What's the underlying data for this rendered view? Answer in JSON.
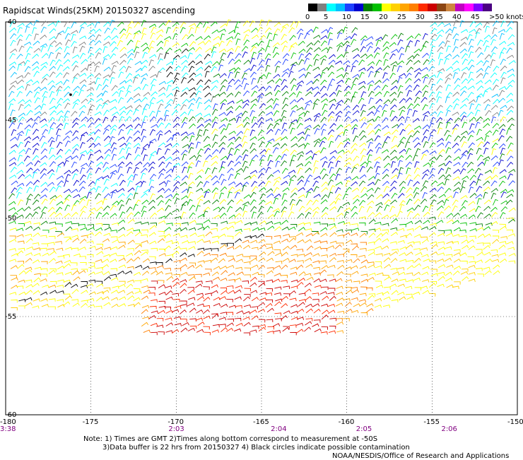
{
  "title": "Rapidscat Winds(25KM) 20150327 ascending",
  "legend": {
    "colors": [
      "#000000",
      "#7f7f7f",
      "#00ffff",
      "#00bfff",
      "#1e40ff",
      "#0000cd",
      "#008000",
      "#00c000",
      "#ffff00",
      "#ffd000",
      "#ffa500",
      "#ff7f00",
      "#ff2a00",
      "#cc0000",
      "#8b4513",
      "#cd853f",
      "#c000c0",
      "#ff00ff",
      "#8000ff",
      "#4b0082"
    ],
    "labels": [
      "0",
      "5",
      "10",
      "15",
      "20",
      "25",
      "30",
      "35",
      "40",
      "45",
      ">50 knots"
    ]
  },
  "map": {
    "lat_labels": [
      "-40",
      "-45",
      "-50",
      "-55",
      "-60"
    ],
    "lon_labels": [
      "-180",
      "-175",
      "-170",
      "-165",
      "-160",
      "-155",
      "-150"
    ],
    "time_labels": [
      {
        "lon": "-180",
        "text": "3:38"
      },
      {
        "lon": "-170",
        "text": "2:03"
      },
      {
        "lon": "-164",
        "text": "2:04"
      },
      {
        "lon": "-159",
        "text": "2:05"
      },
      {
        "lon": "-154",
        "text": "2:06"
      }
    ]
  },
  "notes": {
    "line1": "Note: 1) Times are GMT  2)Times along bottom correspond to measurement at -50S",
    "line2": "3)Data buffer is 22 hrs from 20150327  4) Black circles indicate possible contamination",
    "line3": "NOAA/NESDIS/Office of Research and Applications"
  },
  "wind_field": {
    "bands": [
      {
        "lat_range": [
          "-40",
          "-44"
        ],
        "speed_knots": "5-20",
        "colors": [
          "#7f7f7f",
          "#00ffff",
          "#00bfff",
          "#0000cd"
        ]
      },
      {
        "lat_range": [
          "-40",
          "-44"
        ],
        "speed_knots": "20-25",
        "colors": [
          "#008000",
          "#ffff00"
        ],
        "region": "north-center"
      },
      {
        "lat_range": [
          "-45",
          "-49"
        ],
        "speed_knots": "10-20",
        "colors": [
          "#00ffff",
          "#1e40ff",
          "#0000cd",
          "#008000"
        ]
      },
      {
        "lat_range": [
          "-49",
          "-52"
        ],
        "speed_knots": "15-25",
        "colors": [
          "#008000",
          "#00c000",
          "#ffff00"
        ]
      },
      {
        "lat_range": [
          "-51",
          "-56"
        ],
        "speed_knots": "20-35",
        "colors": [
          "#ffff00",
          "#ffa500",
          "#ff7f00",
          "#cc0000"
        ]
      }
    ]
  }
}
